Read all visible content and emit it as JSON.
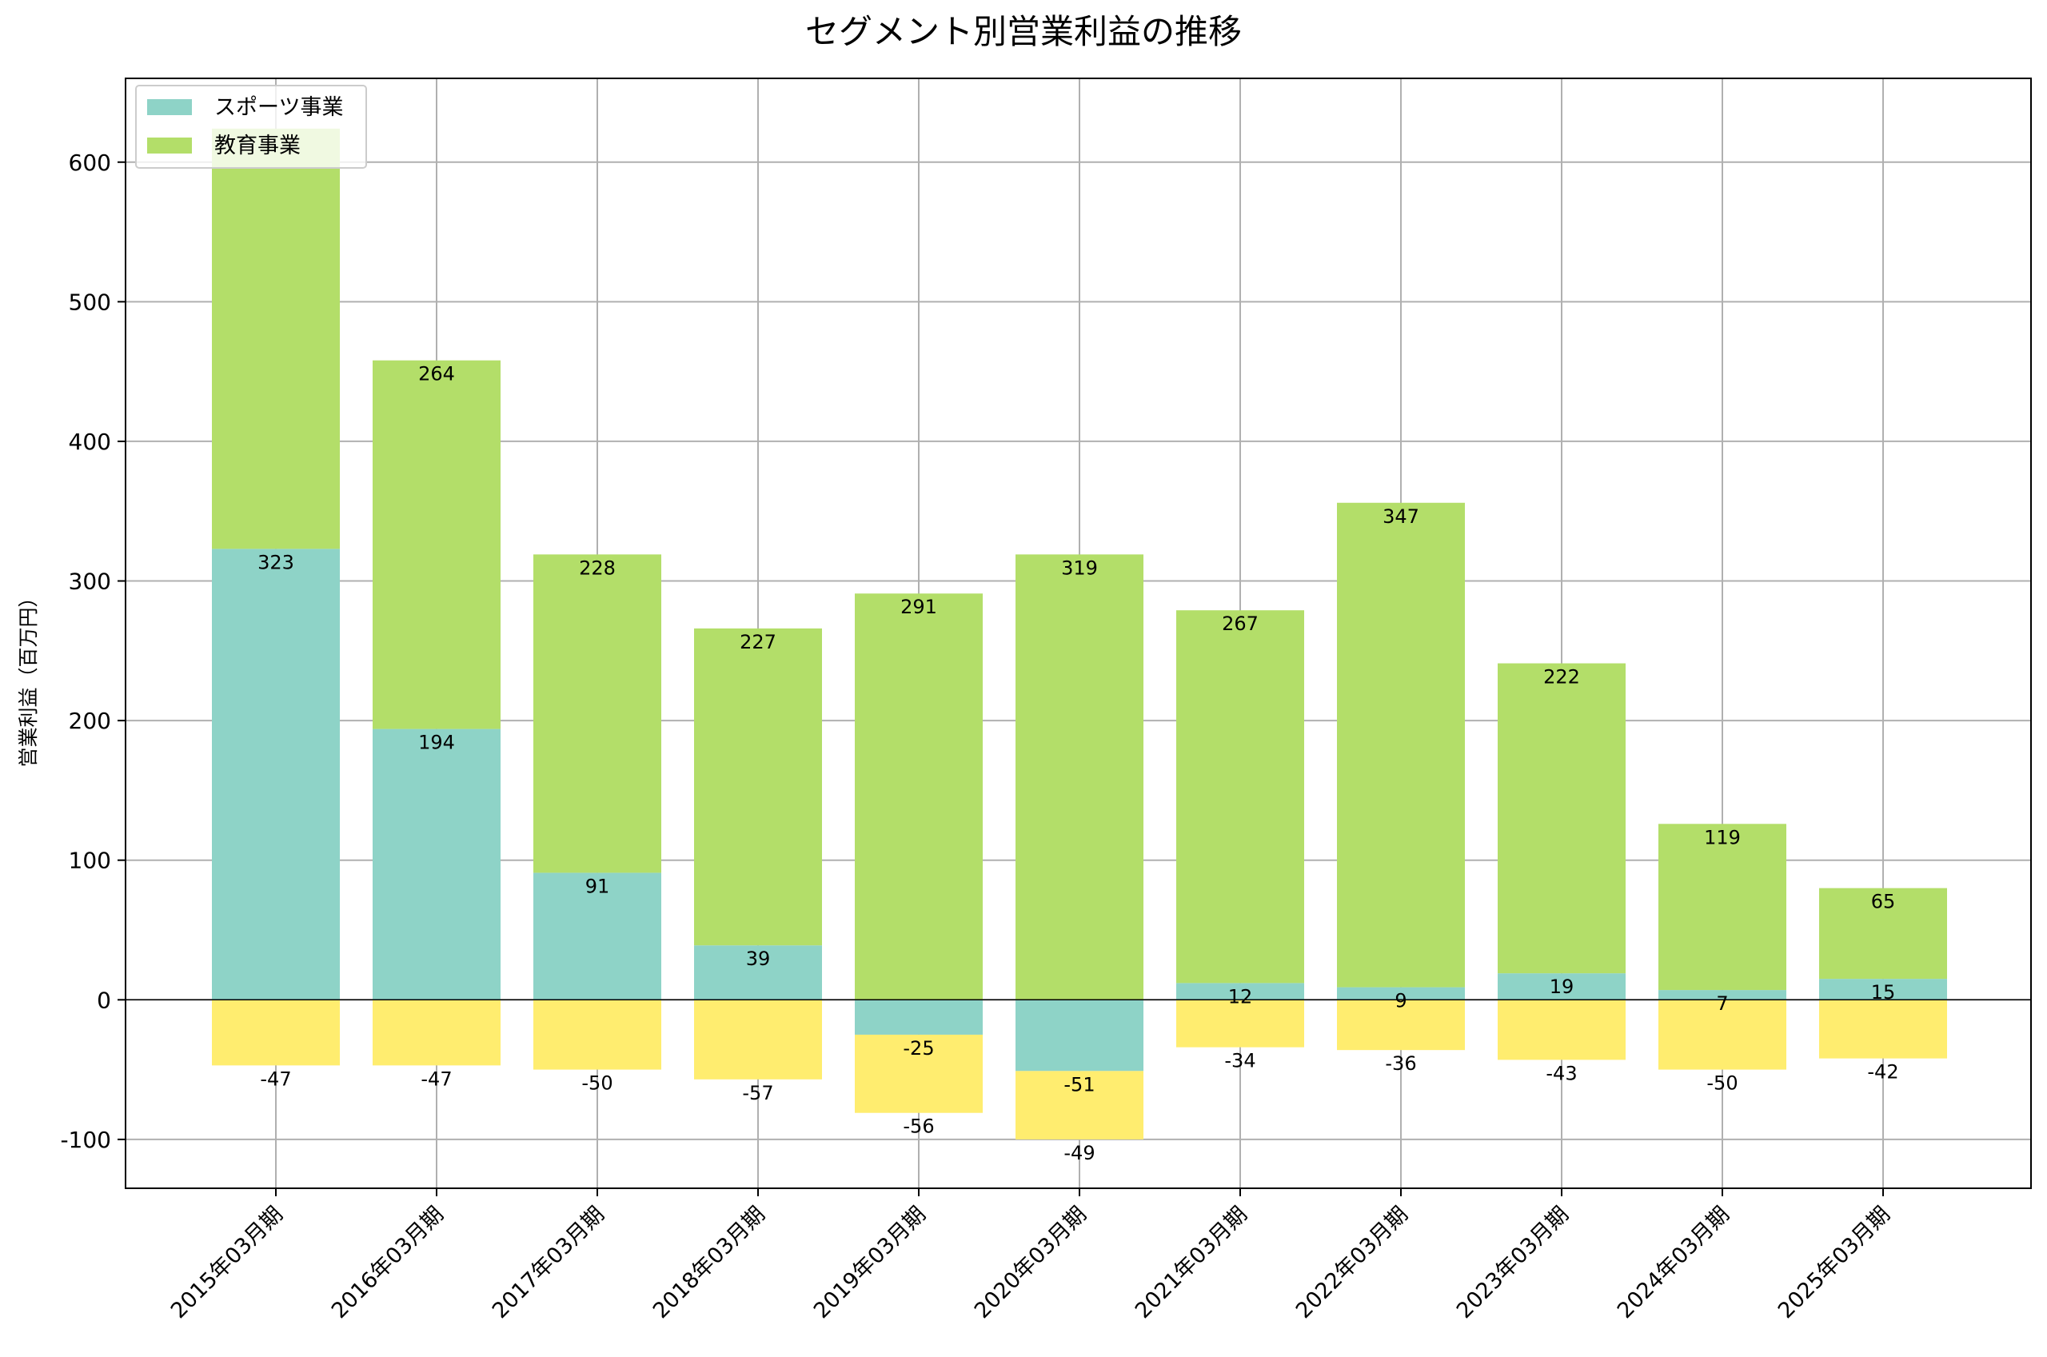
{
  "chart_data": {
    "type": "bar",
    "stacked": true,
    "title": "セグメント別営業利益の推移",
    "xlabel": "",
    "ylabel": "営業利益（百万円）",
    "ylim": [
      -135,
      660
    ],
    "yticks": [
      -100,
      0,
      100,
      200,
      300,
      400,
      500,
      600
    ],
    "grid": true,
    "legend_position": "top-left",
    "categories": [
      "2015年03月期",
      "2016年03月期",
      "2017年03月期",
      "2018年03月期",
      "2019年03月期",
      "2020年03月期",
      "2021年03月期",
      "2022年03月期",
      "2023年03月期",
      "2024年03月期",
      "2025年03月期"
    ],
    "series": [
      {
        "name": "スポーツ事業",
        "color": "#8ed3c7",
        "values": [
          323,
          194,
          91,
          39,
          -25,
          -51,
          12,
          9,
          19,
          7,
          15
        ],
        "labels": [
          "323",
          "194",
          "91",
          "39",
          "-25",
          "-51",
          "12",
          "9",
          "19",
          "7",
          "15"
        ]
      },
      {
        "name": "教育事業",
        "color": "#b3de69",
        "values": [
          301,
          264,
          228,
          227,
          291,
          319,
          267,
          347,
          222,
          119,
          65
        ],
        "labels": [
          "",
          "264",
          "228",
          "227",
          "291",
          "319",
          "267",
          "347",
          "222",
          "119",
          "65"
        ]
      },
      {
        "name": "",
        "color": "#ffed6f",
        "values": [
          -47,
          -47,
          -50,
          -57,
          -56,
          -49,
          -34,
          -36,
          -43,
          -50,
          -42
        ],
        "labels": [
          "-47",
          "-47",
          "-50",
          "-57",
          "-56",
          "-49",
          "-34",
          "-36",
          "-43",
          "-50",
          "-42"
        ]
      }
    ]
  }
}
